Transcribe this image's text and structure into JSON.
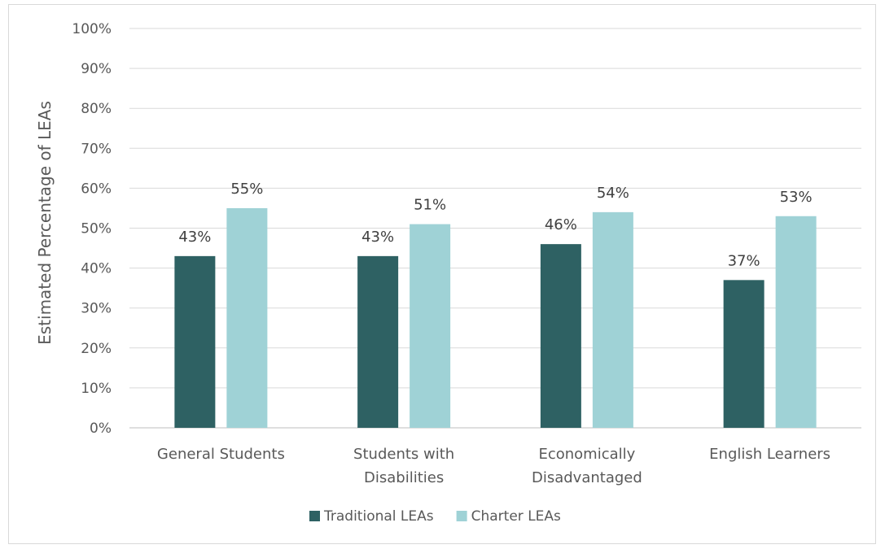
{
  "chart_data": {
    "type": "bar",
    "title": "",
    "xlabel": "",
    "ylabel": "Estimated Percentage of LEAs",
    "categories": [
      "General Students",
      "Students with Disabilities",
      "Economically Disadvantaged",
      "English Learners"
    ],
    "category_lines": [
      [
        "General Students"
      ],
      [
        "Students with",
        "Disabilities"
      ],
      [
        "Economically",
        "Disadvantaged"
      ],
      [
        "English Learners"
      ]
    ],
    "series": [
      {
        "name": "Traditional LEAs",
        "values": [
          43,
          43,
          46,
          37
        ],
        "labels": [
          "43%",
          "43%",
          "46%",
          "37%"
        ],
        "color": "#2e6163"
      },
      {
        "name": "Charter LEAs",
        "values": [
          55,
          51,
          54,
          53
        ],
        "labels": [
          "55%",
          "51%",
          "54%",
          "53%"
        ],
        "color": "#9fd2d6"
      }
    ],
    "ylim": [
      0,
      100
    ],
    "yticks": [
      0,
      10,
      20,
      30,
      40,
      50,
      60,
      70,
      80,
      90,
      100
    ],
    "ytick_labels": [
      "0%",
      "10%",
      "20%",
      "30%",
      "40%",
      "50%",
      "60%",
      "70%",
      "80%",
      "90%",
      "100%"
    ],
    "grid": true,
    "legend_position": "bottom"
  }
}
